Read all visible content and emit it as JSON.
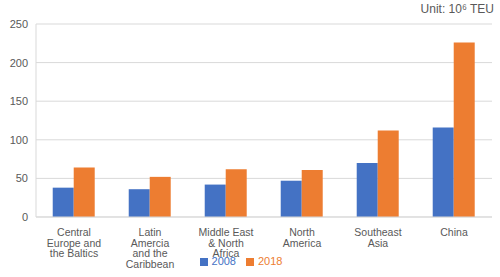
{
  "chart_data": {
    "type": "bar",
    "annotation": "Unit: 10⁶ TEU",
    "categories": [
      "Central Europe and the Baltics",
      "Latin Amercia and the Caribbean",
      "Middle East & North Africa",
      "North America",
      "Southeast Asia",
      "China"
    ],
    "series": [
      {
        "name": "2008",
        "color": "#4472c4",
        "values": [
          38,
          36,
          42,
          47,
          70,
          116
        ]
      },
      {
        "name": "2018",
        "color": "#ed7d31",
        "values": [
          64,
          52,
          62,
          61,
          112,
          226
        ]
      }
    ],
    "ylim": [
      0,
      250
    ],
    "yticks": [
      0,
      50,
      100,
      150,
      200,
      250
    ],
    "grid": true,
    "legend": "bottom"
  }
}
